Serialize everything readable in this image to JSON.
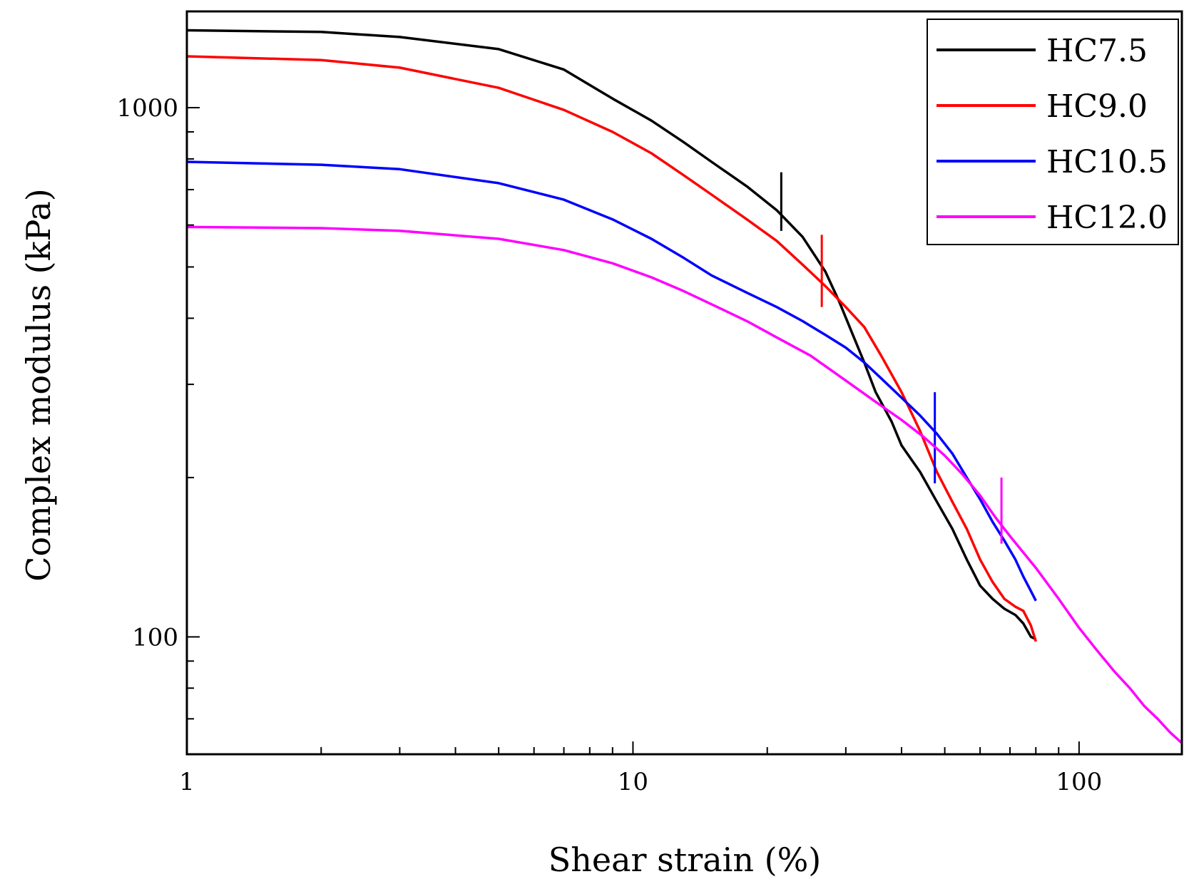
{
  "chart_data": {
    "type": "line",
    "title": "",
    "xlabel": "Shear strain (%)",
    "ylabel": "Complex modulus (kPa)",
    "xscale": "log",
    "yscale": "log",
    "xlim": [
      1,
      170
    ],
    "ylim": [
      60,
      1520
    ],
    "x_ticks": [
      {
        "value": 1,
        "label": "1"
      },
      {
        "value": 10,
        "label": "10"
      },
      {
        "value": 100,
        "label": "100"
      }
    ],
    "y_ticks": [
      {
        "value": 100,
        "label": "100"
      },
      {
        "value": 1000,
        "label": "1000"
      }
    ],
    "legend_position": "top-right",
    "series": [
      {
        "name": "HC7.5",
        "color": "#000000",
        "x": [
          1,
          2,
          3,
          5,
          7,
          9,
          11,
          13,
          15,
          18,
          21,
          24,
          27,
          29,
          31,
          33,
          35,
          38,
          40,
          44,
          48,
          52,
          56,
          60,
          64,
          68,
          72,
          75,
          78,
          80
        ],
        "y": [
          1400,
          1390,
          1360,
          1290,
          1180,
          1040,
          945,
          860,
          790,
          710,
          640,
          570,
          490,
          430,
          375,
          330,
          290,
          255,
          230,
          205,
          180,
          160,
          140,
          125,
          118,
          113,
          110,
          106,
          100,
          99
        ],
        "marker": {
          "x": 21.5,
          "y_low": 585,
          "y_high": 755
        }
      },
      {
        "name": "HC9.0",
        "color": "#ff0000",
        "x": [
          1,
          2,
          3,
          5,
          7,
          9,
          11,
          13,
          15,
          18,
          21,
          24,
          27,
          30,
          33,
          36,
          40,
          44,
          48,
          52,
          56,
          60,
          64,
          68,
          72,
          75,
          78,
          80
        ],
        "y": [
          1250,
          1230,
          1190,
          1090,
          990,
          900,
          820,
          745,
          685,
          615,
          560,
          505,
          460,
          420,
          385,
          340,
          290,
          245,
          205,
          180,
          160,
          140,
          127,
          118,
          114,
          112,
          105,
          98
        ],
        "marker": {
          "x": 26.5,
          "y_low": 420,
          "y_high": 575
        }
      },
      {
        "name": "HC10.5",
        "color": "#0000ff",
        "x": [
          1,
          2,
          3,
          5,
          7,
          9,
          11,
          13,
          15,
          18,
          21,
          24,
          27,
          30,
          33,
          36,
          40,
          44,
          48,
          52,
          56,
          60,
          64,
          68,
          72,
          75,
          78,
          80
        ],
        "y": [
          790,
          780,
          765,
          720,
          670,
          615,
          565,
          520,
          482,
          447,
          420,
          395,
          372,
          352,
          330,
          308,
          283,
          262,
          242,
          222,
          200,
          182,
          165,
          152,
          140,
          130,
          122,
          117
        ],
        "marker": {
          "x": 47.5,
          "y_low": 195,
          "y_high": 290
        }
      },
      {
        "name": "HC12.0",
        "color": "#ff00ff",
        "x": [
          1,
          2,
          3,
          5,
          7,
          9,
          11,
          13,
          15,
          18,
          21,
          25,
          30,
          35,
          40,
          45,
          50,
          55,
          60,
          65,
          70,
          80,
          90,
          100,
          110,
          120,
          130,
          140,
          150,
          160,
          170
        ],
        "y": [
          595,
          592,
          585,
          565,
          538,
          508,
          478,
          450,
          425,
          395,
          368,
          340,
          305,
          278,
          257,
          238,
          220,
          202,
          185,
          168,
          155,
          135,
          118,
          104,
          94,
          86,
          80,
          74,
          70,
          66,
          63
        ],
        "marker": {
          "x": 67,
          "y_low": 150,
          "y_high": 200
        }
      }
    ]
  }
}
